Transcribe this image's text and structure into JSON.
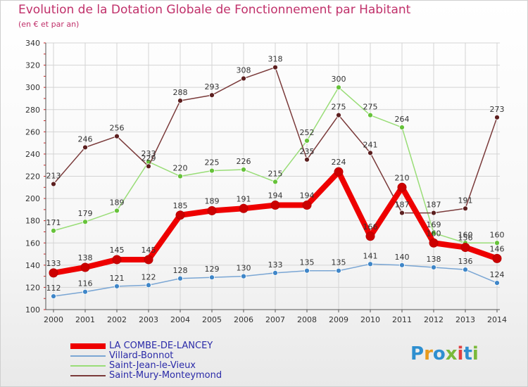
{
  "title": "Evolution de la Dotation Globale de Fonctionnement par Habitant",
  "subtitle": "(en € et par an)",
  "logo": "Proxiti",
  "colors": {
    "title": "#c0306a",
    "legend_text": "#2a2aa8",
    "grid": "#d4d4d4"
  },
  "chart_data": {
    "type": "line",
    "title": "Evolution de la Dotation Globale de Fonctionnement par Habitant",
    "subtitle": "(en € et par an)",
    "x": [
      "2000",
      "2001",
      "2002",
      "2003",
      "2004",
      "2005",
      "2006",
      "2007",
      "2008",
      "2009",
      "2010",
      "2011",
      "2012",
      "2013",
      "2014"
    ],
    "ylim": [
      100,
      340
    ],
    "yticks": [
      100,
      120,
      140,
      160,
      180,
      200,
      220,
      240,
      260,
      280,
      300,
      320,
      340
    ],
    "grid": true,
    "legend_position": "bottom-left",
    "series": [
      {
        "name": "LA COMBE-DE-LANCEY",
        "color": "#ee0000",
        "marker_color": "#cc0000",
        "emphasis": true,
        "values": [
          133,
          138,
          145,
          145,
          185,
          189,
          191,
          194,
          194,
          224,
          166,
          210,
          160,
          156,
          146
        ]
      },
      {
        "name": "Villard-Bonnot",
        "color": "#7aa6d4",
        "marker_color": "#3f86c8",
        "emphasis": false,
        "values": [
          112,
          116,
          121,
          122,
          128,
          129,
          130,
          133,
          135,
          135,
          141,
          140,
          138,
          136,
          124
        ]
      },
      {
        "name": "Saint-Jean-le-Vieux",
        "color": "#99dd77",
        "marker_color": "#66c23a",
        "emphasis": false,
        "values": [
          171,
          179,
          189,
          233,
          220,
          225,
          226,
          215,
          252,
          300,
          275,
          264,
          169,
          160,
          160
        ]
      },
      {
        "name": "Saint-Mury-Monteymond",
        "color": "#7a3a3a",
        "marker_color": "#5c1f1f",
        "emphasis": false,
        "values": [
          213,
          246,
          256,
          229,
          288,
          293,
          308,
          318,
          235,
          275,
          241,
          187,
          187,
          191,
          273
        ]
      }
    ]
  }
}
